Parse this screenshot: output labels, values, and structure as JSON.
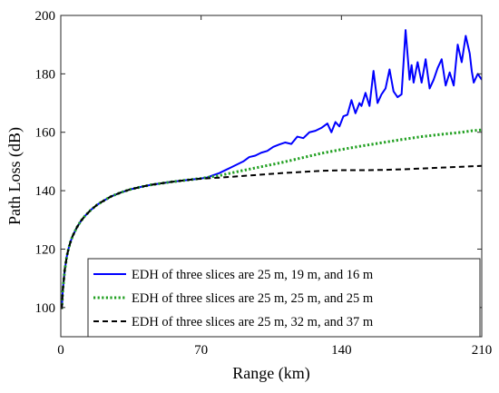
{
  "chart_data": {
    "type": "line",
    "xlabel": "Range (km)",
    "ylabel": "Path Loss (dB)",
    "xlim": [
      0,
      210
    ],
    "ylim": [
      90,
      200
    ],
    "xticks": [
      0,
      70,
      140,
      210
    ],
    "yticks": [
      100,
      120,
      140,
      160,
      180,
      200
    ],
    "grid": false,
    "legend_position": "bottom-right",
    "series": [
      {
        "name": "EDH of three slices are 25 m, 19 m, and 16 m",
        "color": "#0000ff",
        "dash": "solid",
        "x": [
          0.5,
          1,
          2,
          3,
          4,
          5,
          6,
          8,
          10,
          12,
          15,
          18,
          20,
          25,
          30,
          35,
          40,
          45,
          50,
          55,
          60,
          65,
          70,
          73,
          76,
          79,
          82,
          85,
          88,
          91,
          94,
          97,
          100,
          103,
          106,
          109,
          112,
          115,
          118,
          121,
          124,
          127,
          130,
          133,
          135,
          137,
          139,
          141,
          143,
          145,
          147,
          149,
          150,
          152,
          154,
          156,
          158,
          160,
          162,
          164,
          166,
          168,
          170,
          172,
          174,
          175,
          176,
          178,
          180,
          182,
          184,
          186,
          188,
          190,
          192,
          194,
          196,
          198,
          200,
          202,
          204,
          205,
          206,
          208,
          210
        ],
        "values": [
          99.5,
          106,
          113,
          117.5,
          120.5,
          122.8,
          124.6,
          127.4,
          129.6,
          131.3,
          133.4,
          135.1,
          136,
          138,
          139.4,
          140.5,
          141.3,
          142,
          142.5,
          143,
          143.4,
          143.8,
          144.2,
          144.5,
          145.3,
          146,
          147,
          148,
          149,
          150,
          151.5,
          152,
          153,
          153.6,
          155,
          155.8,
          156.5,
          156,
          158.5,
          158,
          160,
          160.5,
          161.5,
          163,
          160,
          163.5,
          162,
          165.5,
          166,
          171,
          166.5,
          170,
          169,
          173.5,
          169,
          181,
          170,
          173,
          175,
          181.5,
          174,
          172,
          173,
          195,
          178,
          183,
          177,
          184,
          177,
          185,
          175,
          178,
          182,
          185,
          176,
          180.5,
          176,
          190,
          184,
          193,
          187,
          181,
          177,
          180,
          178
        ]
      },
      {
        "name": "EDH of three slices are 25 m, 25 m, and 25 m",
        "color": "#22a022",
        "dash": "dotted",
        "x": [
          0.5,
          1,
          2,
          3,
          4,
          5,
          6,
          8,
          10,
          12,
          15,
          18,
          20,
          25,
          30,
          35,
          40,
          45,
          50,
          55,
          60,
          65,
          70,
          80,
          90,
          100,
          110,
          120,
          130,
          140,
          150,
          160,
          170,
          180,
          190,
          200,
          205,
          210
        ],
        "values": [
          99.5,
          106,
          113,
          117.5,
          120.5,
          122.8,
          124.6,
          127.4,
          129.6,
          131.3,
          133.4,
          135.1,
          136,
          138,
          139.4,
          140.5,
          141.3,
          142,
          142.5,
          143,
          143.4,
          143.8,
          144.2,
          145.3,
          146.8,
          148.2,
          149.6,
          151.2,
          152.8,
          154.1,
          155.3,
          156.4,
          157.5,
          158.5,
          159.3,
          160,
          160.5,
          160.8
        ]
      },
      {
        "name": "EDH of three slices are 25 m, 32 m, and 37 m",
        "color": "#000000",
        "dash": "dashed",
        "x": [
          0.5,
          1,
          2,
          3,
          4,
          5,
          6,
          8,
          10,
          12,
          15,
          18,
          20,
          25,
          30,
          35,
          40,
          45,
          50,
          55,
          60,
          65,
          70,
          80,
          90,
          100,
          110,
          120,
          130,
          140,
          150,
          160,
          170,
          180,
          190,
          200,
          210
        ],
        "values": [
          99.5,
          106,
          113,
          117.5,
          120.5,
          122.8,
          124.6,
          127.4,
          129.6,
          131.3,
          133.4,
          135.1,
          136,
          138,
          139.4,
          140.5,
          141.3,
          142,
          142.5,
          143,
          143.4,
          143.8,
          144.1,
          144.5,
          145,
          145.5,
          146,
          146.4,
          146.8,
          147,
          147,
          147.1,
          147.3,
          147.6,
          147.9,
          148.2,
          148.5
        ]
      }
    ]
  }
}
